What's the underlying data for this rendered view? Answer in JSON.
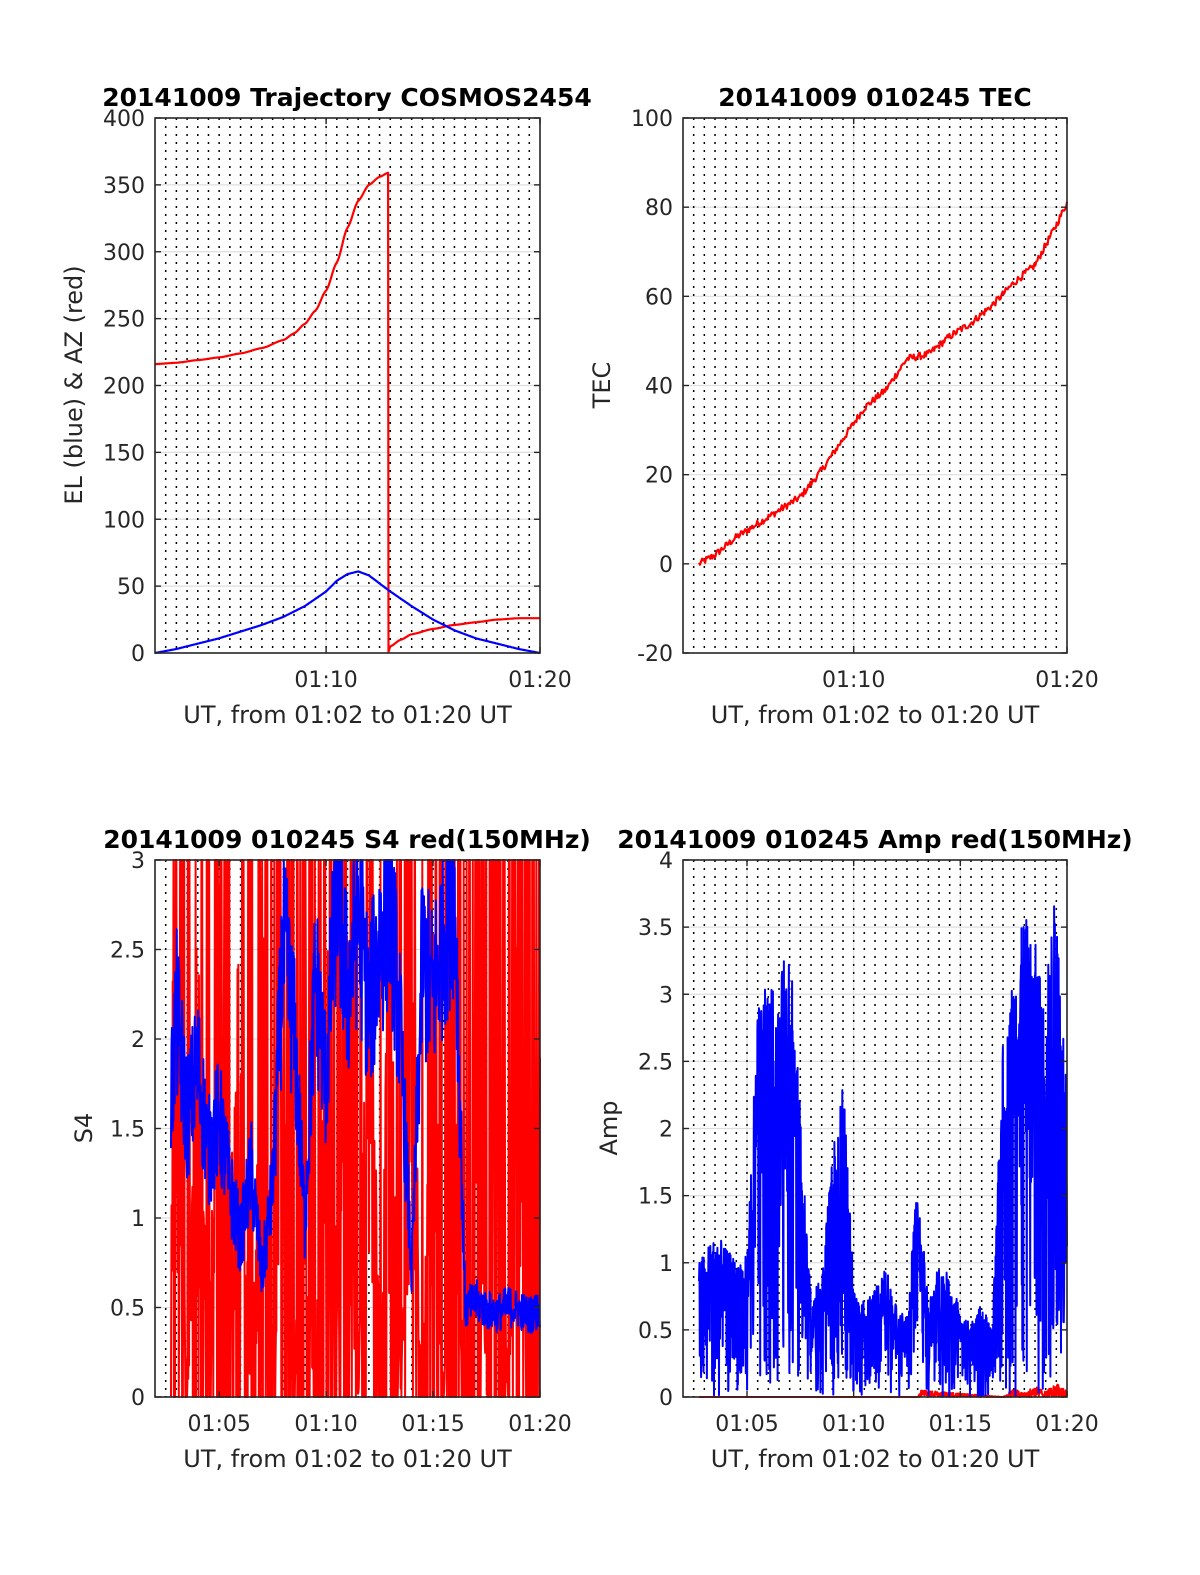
{
  "figure_title": "",
  "chart_data": [
    {
      "id": "trajectory",
      "type": "line",
      "title": "20141009 Trajectory COSMOS2454",
      "xlabel": "UT, from 01:02 to 01:20 UT",
      "ylabel": "EL (blue) & AZ (red)",
      "xlim": [
        "01:02",
        "01:20"
      ],
      "ylim": [
        0,
        400
      ],
      "x_ticks": [
        "01:10",
        "01:20"
      ],
      "y_ticks": [
        0,
        50,
        100,
        150,
        200,
        250,
        300,
        350,
        400
      ],
      "grid": true,
      "series": [
        {
          "color": "#ff0000",
          "x": [
            "01:02:00",
            "01:03:00",
            "01:04:00",
            "01:05:00",
            "01:06:00",
            "01:07:00",
            "01:08:00",
            "01:08:30",
            "01:09:00",
            "01:09:30",
            "01:10:00",
            "01:10:30",
            "01:11:00",
            "01:11:30",
            "01:12:00",
            "01:12:30",
            "01:12:54",
            "01:12:55",
            "01:13:00",
            "01:13:30",
            "01:14:00",
            "01:15:00",
            "01:16:00",
            "01:17:00",
            "01:18:00",
            "01:19:00",
            "01:20:00"
          ],
          "values": [
            216,
            217,
            219,
            221,
            224,
            228,
            234,
            239,
            246,
            256,
            271,
            292,
            318,
            338,
            350,
            356,
            359,
            1,
            5,
            10,
            14,
            18,
            21,
            23,
            25,
            26,
            26
          ]
        },
        {
          "color": "#0000ff",
          "x": [
            "01:02:00",
            "01:03:00",
            "01:04:00",
            "01:05:00",
            "01:06:00",
            "01:07:00",
            "01:08:00",
            "01:09:00",
            "01:10:00",
            "01:10:30",
            "01:11:00",
            "01:11:30",
            "01:12:00",
            "01:12:30",
            "01:13:00",
            "01:14:00",
            "01:15:00",
            "01:16:00",
            "01:17:00",
            "01:18:00",
            "01:19:00",
            "01:20:00"
          ],
          "values": [
            0,
            3,
            7,
            11,
            16,
            21,
            27,
            35,
            46,
            54,
            59,
            61,
            58,
            52,
            46,
            35,
            25,
            17,
            11,
            7,
            3,
            0
          ]
        }
      ]
    },
    {
      "id": "tec",
      "type": "line",
      "title": "20141009 010245 TEC",
      "xlabel": "UT, from 01:02 to 01:20 UT",
      "ylabel": "TEC",
      "xlim": [
        "01:02",
        "01:20"
      ],
      "ylim": [
        -20,
        100
      ],
      "x_ticks": [
        "01:10",
        "01:20"
      ],
      "y_ticks": [
        -20,
        0,
        20,
        40,
        60,
        80,
        100
      ],
      "grid": true,
      "series": [
        {
          "color": "#ff0000",
          "x": [
            "01:02:45",
            "01:03:30",
            "01:04:30",
            "01:05:30",
            "01:06:30",
            "01:07:30",
            "01:08:30",
            "01:09:30",
            "01:10:30",
            "01:11:30",
            "01:12:30",
            "01:13:30",
            "01:14:30",
            "01:15:30",
            "01:16:30",
            "01:17:30",
            "01:18:30",
            "01:19:30",
            "01:20:00"
          ],
          "values": [
            0,
            2,
            6,
            9,
            12,
            15,
            21,
            28,
            35,
            39,
            46,
            47,
            51,
            54,
            58,
            63,
            67,
            76,
            81
          ]
        }
      ]
    },
    {
      "id": "s4",
      "type": "line",
      "title": "20141009 010245 S4 red(150MHz)",
      "xlabel": "UT, from 01:02 to 01:20 UT",
      "ylabel": "S4",
      "xlim": [
        "01:02",
        "01:20"
      ],
      "ylim": [
        0,
        3
      ],
      "x_ticks": [
        "01:05",
        "01:10",
        "01:15",
        "01:20"
      ],
      "y_ticks": [
        0,
        0.5,
        1,
        1.5,
        2,
        2.5,
        3
      ],
      "grid": true,
      "series": [
        {
          "color": "#ff0000",
          "x": [
            "01:02:45",
            "01:03:00",
            "01:03:30",
            "01:04:00",
            "01:04:30",
            "01:05:00",
            "01:05:30",
            "01:06:00",
            "01:06:30",
            "01:07:00",
            "01:07:30",
            "01:08:00",
            "01:08:30",
            "01:09:00",
            "01:09:30",
            "01:10:00",
            "01:10:30",
            "01:11:00",
            "01:11:30",
            "01:12:00",
            "01:12:30",
            "01:13:00",
            "01:13:30",
            "01:14:00",
            "01:14:30",
            "01:15:00",
            "01:15:30",
            "01:16:00",
            "01:16:30",
            "01:17:00",
            "01:17:30",
            "01:18:00",
            "01:18:30",
            "01:19:00",
            "01:19:30",
            "01:20:00"
          ],
          "values": [
            2.5,
            3.0,
            0.0,
            3.0,
            0.2,
            3.0,
            1.1,
            3.0,
            0.0,
            3.0,
            0.3,
            3.0,
            0.0,
            2.6,
            0.0,
            3.0,
            0.8,
            3.0,
            0.0,
            3.0,
            0.4,
            3.0,
            0.0,
            3.0,
            0.0,
            3.0,
            0.0,
            3.0,
            0.0,
            3.0,
            0.0,
            3.0,
            0.0,
            3.0,
            0.0,
            2.2
          ]
        },
        {
          "color": "#0000ff",
          "x": [
            "01:02:45",
            "01:03:00",
            "01:03:30",
            "01:04:00",
            "01:04:30",
            "01:05:00",
            "01:05:30",
            "01:06:00",
            "01:06:30",
            "01:07:00",
            "01:07:30",
            "01:08:00",
            "01:08:30",
            "01:09:00",
            "01:09:30",
            "01:10:00",
            "01:10:30",
            "01:11:00",
            "01:11:30",
            "01:12:00",
            "01:12:30",
            "01:13:00",
            "01:13:30",
            "01:14:00",
            "01:14:30",
            "01:15:00",
            "01:15:30",
            "01:16:00",
            "01:16:30",
            "01:17:00",
            "01:17:30",
            "01:18:00",
            "01:18:30",
            "01:19:00",
            "01:19:30",
            "01:20:00"
          ],
          "values": [
            1.7,
            2.2,
            1.6,
            1.9,
            1.4,
            1.6,
            1.2,
            0.9,
            1.3,
            0.7,
            1.2,
            2.6,
            2.1,
            1.0,
            2.4,
            1.8,
            3.0,
            2.3,
            2.8,
            2.2,
            2.6,
            2.9,
            2.0,
            0.7,
            2.5,
            2.3,
            2.7,
            3.0,
            0.5,
            0.55,
            0.5,
            0.48,
            0.52,
            0.5,
            0.47,
            0.5
          ]
        }
      ]
    },
    {
      "id": "amp",
      "type": "line",
      "title": "20141009 010245 Amp red(150MHz)",
      "xlabel": "UT, from 01:02 to 01:20 UT",
      "ylabel": "Amp",
      "xlim": [
        "01:02",
        "01:20"
      ],
      "ylim": [
        0,
        4
      ],
      "x_ticks": [
        "01:05",
        "01:10",
        "01:15",
        "01:20"
      ],
      "y_ticks": [
        0,
        0.5,
        1,
        1.5,
        2,
        2.5,
        3,
        3.5,
        4
      ],
      "grid": true,
      "series": [
        {
          "color": "#ff0000",
          "x": [
            "01:02:45",
            "01:13:00",
            "01:13:10",
            "01:17:00",
            "01:17:30",
            "01:18:00",
            "01:18:30",
            "01:19:00",
            "01:19:30",
            "01:20:00"
          ],
          "values": [
            0,
            0,
            0.05,
            0,
            0.06,
            0.03,
            0.08,
            0.04,
            0.1,
            0.05
          ]
        },
        {
          "color": "#0000ff",
          "x": [
            "01:02:45",
            "01:03:30",
            "01:04:00",
            "01:04:30",
            "01:05:00",
            "01:05:30",
            "01:06:00",
            "01:06:30",
            "01:07:00",
            "01:07:20",
            "01:08:00",
            "01:08:30",
            "01:09:00",
            "01:09:30",
            "01:10:00",
            "01:10:30",
            "01:11:00",
            "01:11:30",
            "01:12:00",
            "01:12:30",
            "01:13:00",
            "01:13:30",
            "01:14:00",
            "01:14:30",
            "01:15:00",
            "01:15:30",
            "01:16:00",
            "01:16:30",
            "01:17:00",
            "01:17:30",
            "01:18:00",
            "01:18:30",
            "01:19:00",
            "01:19:30",
            "01:20:00"
          ],
          "values": [
            1.0,
            1.25,
            1.1,
            1.05,
            1.05,
            2.9,
            3.1,
            3.0,
            3.6,
            2.6,
            0.75,
            0.9,
            1.8,
            2.4,
            0.85,
            0.7,
            0.8,
            1.0,
            0.7,
            0.6,
            1.65,
            0.7,
            1.0,
            0.9,
            0.65,
            0.55,
            0.7,
            0.5,
            2.7,
            3.2,
            3.6,
            3.4,
            3.1,
            3.9,
            2.2
          ]
        }
      ]
    }
  ]
}
